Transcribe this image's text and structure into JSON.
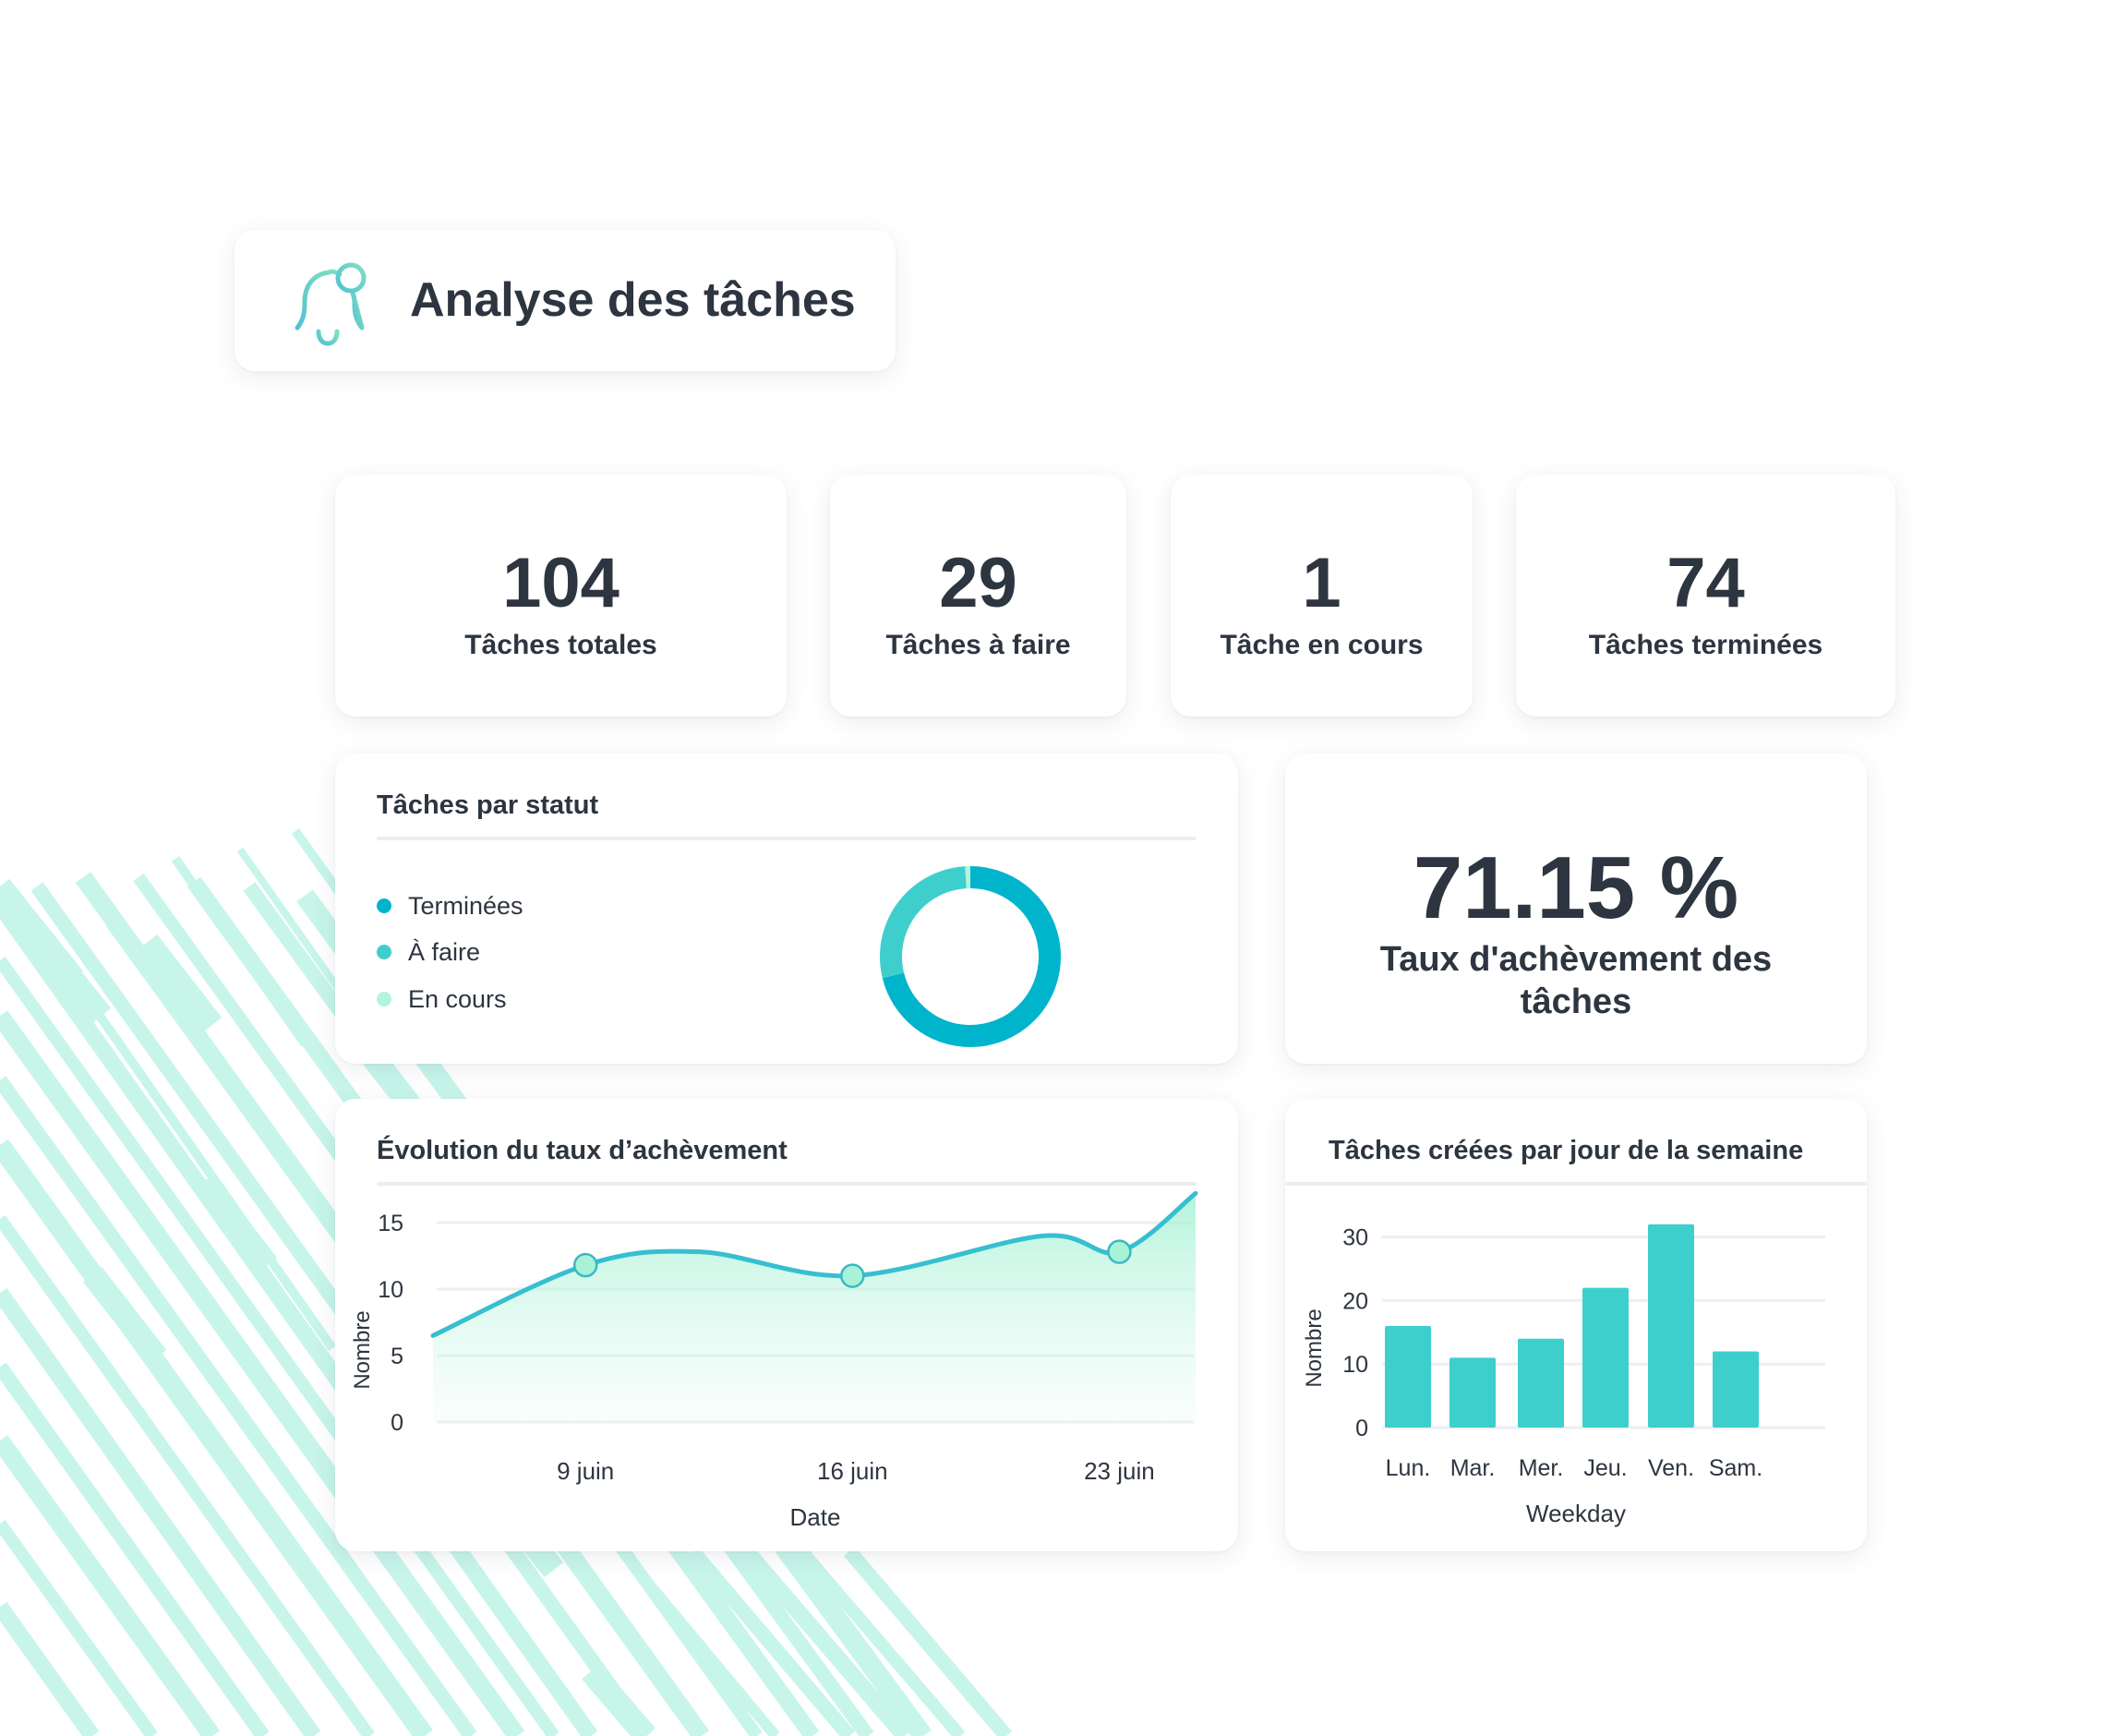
{
  "header": {
    "title": "Analyse des tâches",
    "icon": "bell-icon"
  },
  "stats": [
    {
      "value": "104",
      "label": "Tâches totales"
    },
    {
      "value": "29",
      "label": "Tâches à faire"
    },
    {
      "value": "1",
      "label": "Tâche en cours"
    },
    {
      "value": "74",
      "label": "Tâches terminées"
    }
  ],
  "status_card": {
    "title": "Tâches par statut",
    "legend": [
      {
        "label": "Terminées",
        "color": "#00b4cc"
      },
      {
        "label": "À faire",
        "color": "#3ecfcc"
      },
      {
        "label": "En cours",
        "color": "#b2f5dd"
      }
    ]
  },
  "rate_card": {
    "value": "71.15 %",
    "label": "Taux d'achèvement des tâches"
  },
  "colors": {
    "accent": "#00b4cc",
    "teal": "#3dcfcc",
    "mint": "#b2f5dd",
    "line": "#36bfd0",
    "text": "#2d3540",
    "stripes": "#c7f5ea"
  },
  "chart_data": [
    {
      "type": "pie",
      "title": "Tâches par statut",
      "categories": [
        "Terminées",
        "À faire",
        "En cours"
      ],
      "values": [
        74,
        29,
        1
      ],
      "colors": [
        "#00b4cc",
        "#3ecfcc",
        "#b2f5dd"
      ]
    },
    {
      "type": "area",
      "title": "Évolution du taux d’achèvement",
      "xlabel": "Date",
      "ylabel": "Nombre",
      "xticks": [
        "9 juin",
        "16 juin",
        "23 juin"
      ],
      "yticks": [
        "0",
        "5",
        "10",
        "15"
      ],
      "ylim": [
        0,
        15
      ],
      "x": [
        "5 juin",
        "9 juin",
        "12 juin",
        "16 juin",
        "21 juin",
        "23 juin",
        "25 juin"
      ],
      "values": [
        6.5,
        11.8,
        12.8,
        11,
        14,
        12.8,
        17.2
      ],
      "markers": [
        "9 juin",
        "16 juin",
        "23 juin"
      ],
      "smooth": true,
      "grid": true
    },
    {
      "type": "bar",
      "title": "Tâches créées par jour de la semaine",
      "xlabel": "Weekday",
      "ylabel": "Nombre",
      "categories": [
        "Lun.",
        "Mar.",
        "Mer.",
        "Jeu.",
        "Ven.",
        "Sam."
      ],
      "values": [
        16,
        11,
        14,
        22,
        32,
        12
      ],
      "yticks": [
        "0",
        "10",
        "20",
        "30"
      ],
      "ylim": [
        0,
        33
      ],
      "color": "#3dcfcc",
      "grid": true
    }
  ]
}
